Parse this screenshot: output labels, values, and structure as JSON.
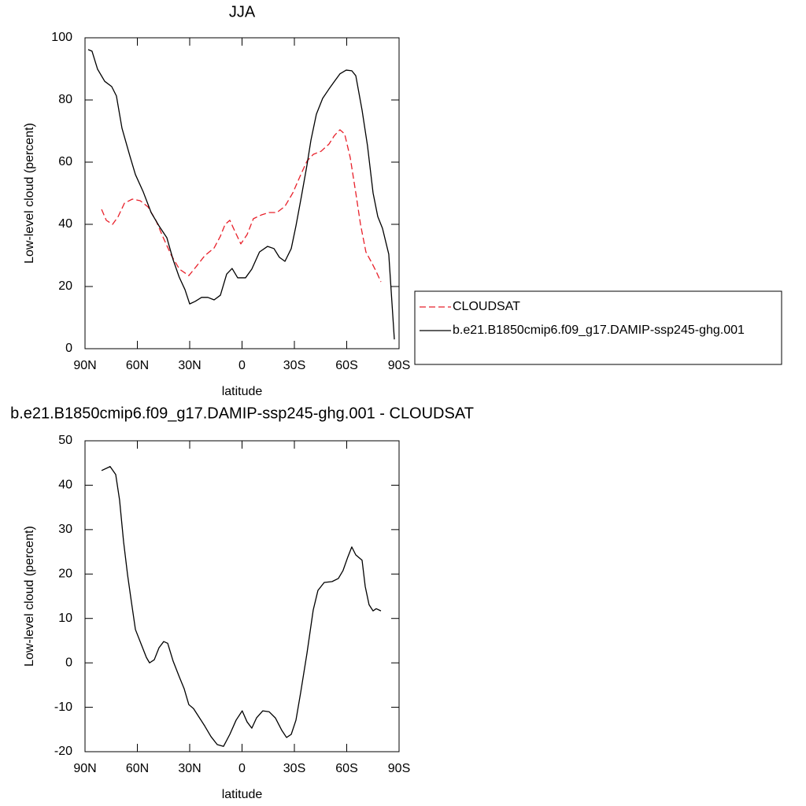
{
  "chart_data": [
    {
      "type": "line",
      "title": "JJA",
      "xlabel": "latitude",
      "ylabel": "Low-level cloud (percent)",
      "xlim": [
        90,
        -90
      ],
      "xticks": [
        {
          "value": 90,
          "label": "90N"
        },
        {
          "value": 60,
          "label": "60N"
        },
        {
          "value": 30,
          "label": "30N"
        },
        0,
        {
          "value": -30,
          "label": "30S"
        },
        {
          "value": -60,
          "label": "60S"
        },
        {
          "value": -90,
          "label": "90S"
        }
      ],
      "ylim": [
        0,
        100
      ],
      "yticks": [
        0,
        20,
        40,
        60,
        80,
        100
      ],
      "legend": "right",
      "series": [
        {
          "name": "CLOUDSAT",
          "color": "#e8202a",
          "style": "dashed",
          "x": [
            80.5,
            77.8,
            74.2,
            71,
            67.4,
            62.9,
            58.4,
            53.9,
            49.4,
            44.9,
            40.4,
            35.9,
            30.5,
            26,
            21.4,
            16,
            12.4,
            9.7,
            7,
            4.3,
            0.7,
            -2.9,
            -6.5,
            -11,
            -15.5,
            -20,
            -24.6,
            -29.1,
            -33.6,
            -37.2,
            -40.8,
            -45.3,
            -49.8,
            -53,
            -56.1,
            -58.8,
            -62,
            -65.2,
            -67.9,
            -71,
            -74.2,
            -76.9,
            -79.6
          ],
          "values": [
            44.8,
            41.3,
            40,
            42.5,
            46.8,
            48.1,
            47.6,
            45.6,
            41.3,
            35.4,
            29.9,
            25.6,
            23.5,
            26.6,
            29.9,
            32.4,
            36.2,
            40,
            41.3,
            38,
            33.7,
            36.7,
            41.8,
            43,
            43.8,
            43.8,
            45.8,
            50.1,
            55.9,
            60.3,
            62.5,
            63.5,
            65.8,
            68.6,
            70.4,
            69.1,
            61.5,
            50.1,
            40,
            31.1,
            27.8,
            24.8,
            21.5
          ]
        },
        {
          "name": "b.e21.B1850cmip6.f09_g17.DAMIP-ssp245-ghg.001",
          "color": "#000000",
          "style": "solid",
          "x": [
            88.2,
            86,
            82.8,
            78.7,
            74.7,
            72,
            68.8,
            64.3,
            61.1,
            56.6,
            52.1,
            47.6,
            43.1,
            39.5,
            36,
            32.7,
            30,
            26.9,
            23.2,
            19.6,
            16,
            12.4,
            8.8,
            5.7,
            2.5,
            -2,
            -5.6,
            -10,
            -14.6,
            -18.3,
            -21.4,
            -24.6,
            -28.2,
            -30.9,
            -34,
            -37.2,
            -39.5,
            -42.6,
            -46.2,
            -49.8,
            -53,
            -56.1,
            -59.7,
            -62.9,
            -65.2,
            -68.8,
            -71.9,
            -75.1,
            -77.8,
            -80.5,
            -84.1,
            -87.3
          ],
          "values": [
            96.2,
            95.7,
            89.9,
            86,
            84.3,
            81.3,
            70.9,
            62,
            56,
            50.4,
            43.8,
            39.5,
            35.7,
            28.6,
            23,
            19,
            14.4,
            15.2,
            16.5,
            16.5,
            15.7,
            17.2,
            24,
            25.8,
            22.8,
            22.8,
            25.6,
            31.1,
            32.9,
            32.2,
            29.4,
            28.1,
            32.2,
            39.5,
            48.9,
            59,
            67.1,
            75.4,
            80.5,
            83.5,
            86,
            88.4,
            89.6,
            89.4,
            87.8,
            76.7,
            65.3,
            50.1,
            42.5,
            38.7,
            30.4,
            3
          ]
        }
      ]
    },
    {
      "type": "line",
      "title": "b.e21.B1850cmip6.f09_g17.DAMIP-ssp245-ghg.001 - CLOUDSAT",
      "xlabel": "latitude",
      "ylabel": "Low-level cloud (percent)",
      "xlim": [
        90,
        -90
      ],
      "xticks": [
        {
          "value": 90,
          "label": "90N"
        },
        {
          "value": 60,
          "label": "60N"
        },
        {
          "value": 30,
          "label": "30N"
        },
        0,
        {
          "value": -30,
          "label": "30S"
        },
        {
          "value": -60,
          "label": "60S"
        },
        {
          "value": -90,
          "label": "90S"
        }
      ],
      "ylim": [
        -20,
        50
      ],
      "yticks": [
        -20,
        -10,
        0,
        10,
        20,
        30,
        40,
        50
      ],
      "series": [
        {
          "color": "#000000",
          "style": "solid",
          "x": [
            80.5,
            75.6,
            72.4,
            70.2,
            67.9,
            65.6,
            63.4,
            61.1,
            57.5,
            54.8,
            53,
            50.3,
            47.6,
            44.9,
            42.6,
            39.5,
            35.9,
            33.2,
            30.5,
            27.8,
            25,
            21.4,
            17.8,
            14.2,
            10.6,
            7,
            3.4,
            -0.1,
            -2.9,
            -5.6,
            -8.3,
            -11.9,
            -15.5,
            -19.1,
            -22.8,
            -25.5,
            -28.2,
            -30.9,
            -33.6,
            -37.2,
            -40.8,
            -43.5,
            -47.1,
            -51.6,
            -55.2,
            -57.9,
            -60.6,
            -62.9,
            -65.2,
            -68.8,
            -70.6,
            -72.8,
            -75.1,
            -76.9,
            -79.6
          ],
          "values": [
            43.3,
            44.2,
            42.4,
            36.7,
            27.3,
            19.8,
            13.7,
            7.5,
            3.9,
            1.2,
            0,
            0.7,
            3.4,
            4.8,
            4.4,
            0.4,
            -3.2,
            -5.8,
            -9.4,
            -10.3,
            -12,
            -14.2,
            -16.6,
            -18.4,
            -18.8,
            -16.1,
            -12.9,
            -10.8,
            -13.3,
            -14.7,
            -12.4,
            -10.8,
            -11,
            -12.4,
            -15.2,
            -16.8,
            -16.1,
            -12.9,
            -6.7,
            2.1,
            11.9,
            16.3,
            18.1,
            18.3,
            19,
            20.8,
            23.8,
            26.1,
            24.3,
            23.1,
            17.2,
            13.1,
            11.7,
            12.2,
            11.7
          ]
        }
      ]
    }
  ]
}
